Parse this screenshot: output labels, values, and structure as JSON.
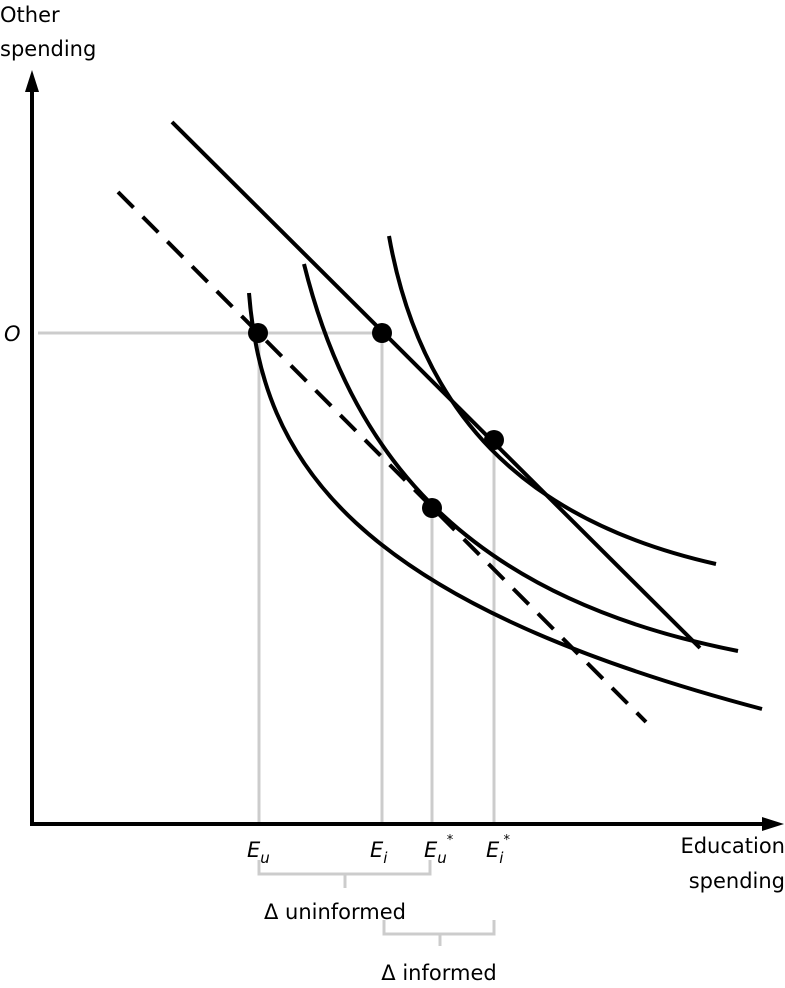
{
  "axes": {
    "y_label_line1": "Other",
    "y_label_line2": "spending",
    "x_label_line1": "Education",
    "x_label_line2": "spending",
    "y_tick": "O"
  },
  "x_ticks": [
    {
      "main": "E",
      "sub": "u",
      "sup": ""
    },
    {
      "main": "E",
      "sub": "i",
      "sup": ""
    },
    {
      "main": "E",
      "sub": "u",
      "sup": "*"
    },
    {
      "main": "E",
      "sub": "i",
      "sup": "*"
    }
  ],
  "annotations": {
    "delta_uninformed": "Δ uninformed",
    "delta_informed": "Δ informed"
  },
  "colors": {
    "curves": "#000000",
    "guides": "#cccccc"
  }
}
